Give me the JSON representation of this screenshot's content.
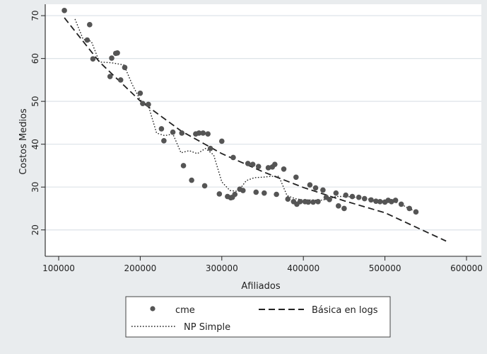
{
  "colors": {
    "outer_background": "#e9ecee",
    "plot_background": "#ffffff",
    "grid": "#dde3e8",
    "axis": "#222222",
    "markers": "#555555"
  },
  "chart_data": {
    "type": "scatter",
    "title": "",
    "xlabel": "Afiliados",
    "ylabel": "Costos Medios",
    "xlim": [
      100000,
      600000
    ],
    "ylim": [
      15,
      72
    ],
    "x_ticks": [
      100000,
      200000,
      300000,
      400000,
      500000,
      600000
    ],
    "x_tick_labels": [
      "100000",
      "200000",
      "300000",
      "400000",
      "500000",
      "600000"
    ],
    "y_ticks": [
      20,
      30,
      40,
      50,
      60,
      70
    ],
    "y_tick_labels": [
      "20",
      "30",
      "40",
      "50",
      "60",
      "70"
    ],
    "grid": "horizontal",
    "legend_position": "bottom",
    "series": [
      {
        "name": "cme",
        "style": "markers",
        "points": [
          [
            107000,
            71.2
          ],
          [
            135000,
            64.3
          ],
          [
            138000,
            67.9
          ],
          [
            142000,
            59.9
          ],
          [
            163000,
            55.8
          ],
          [
            165000,
            60.1
          ],
          [
            170000,
            61.2
          ],
          [
            172000,
            61.3
          ],
          [
            176000,
            55.0
          ],
          [
            181000,
            57.9
          ],
          [
            200000,
            51.9
          ],
          [
            203000,
            49.5
          ],
          [
            210000,
            49.3
          ],
          [
            226000,
            43.6
          ],
          [
            229000,
            40.8
          ],
          [
            240000,
            42.8
          ],
          [
            251000,
            42.6
          ],
          [
            253000,
            35.0
          ],
          [
            263000,
            31.6
          ],
          [
            268000,
            42.4
          ],
          [
            272000,
            42.6
          ],
          [
            277000,
            42.6
          ],
          [
            279000,
            30.3
          ],
          [
            283000,
            42.4
          ],
          [
            286000,
            39.0
          ],
          [
            297000,
            28.4
          ],
          [
            300000,
            40.7
          ],
          [
            307000,
            27.8
          ],
          [
            311000,
            27.5
          ],
          [
            313000,
            27.6
          ],
          [
            316000,
            28.3
          ],
          [
            314000,
            36.9
          ],
          [
            322000,
            29.5
          ],
          [
            326000,
            29.2
          ],
          [
            332000,
            35.5
          ],
          [
            338000,
            35.3
          ],
          [
            342000,
            28.8
          ],
          [
            345000,
            34.8
          ],
          [
            352000,
            28.6
          ],
          [
            357000,
            34.5
          ],
          [
            362000,
            34.7
          ],
          [
            365000,
            35.3
          ],
          [
            367000,
            28.3
          ],
          [
            376000,
            34.2
          ],
          [
            381000,
            27.2
          ],
          [
            388000,
            26.6
          ],
          [
            391000,
            32.3
          ],
          [
            392000,
            26.0
          ],
          [
            396000,
            26.6
          ],
          [
            402000,
            26.6
          ],
          [
            406000,
            26.5
          ],
          [
            408000,
            30.5
          ],
          [
            412000,
            26.5
          ],
          [
            415000,
            29.8
          ],
          [
            418000,
            26.6
          ],
          [
            424000,
            29.3
          ],
          [
            428000,
            27.6
          ],
          [
            432000,
            27.1
          ],
          [
            440000,
            28.6
          ],
          [
            443000,
            25.6
          ],
          [
            450000,
            25.0
          ],
          [
            452000,
            28.1
          ],
          [
            460000,
            27.8
          ],
          [
            468000,
            27.6
          ],
          [
            475000,
            27.3
          ],
          [
            483000,
            27.0
          ],
          [
            489000,
            26.7
          ],
          [
            494000,
            26.6
          ],
          [
            500000,
            26.5
          ],
          [
            504000,
            26.9
          ],
          [
            508000,
            26.6
          ],
          [
            513000,
            26.9
          ],
          [
            520000,
            26.0
          ],
          [
            530000,
            25.0
          ],
          [
            538000,
            24.2
          ]
        ]
      },
      {
        "name": "Básica en logs",
        "style": "dashed",
        "points": [
          [
            107000,
            69.5
          ],
          [
            150000,
            59.2
          ],
          [
            200000,
            50.1
          ],
          [
            250000,
            43.1
          ],
          [
            300000,
            37.8
          ],
          [
            350000,
            33.6
          ],
          [
            400000,
            29.9
          ],
          [
            450000,
            26.8
          ],
          [
            500000,
            24.0
          ],
          [
            550000,
            19.6
          ],
          [
            575000,
            17.4
          ]
        ]
      },
      {
        "name": "NP Simple",
        "style": "dotted",
        "points": [
          [
            120000,
            69.2
          ],
          [
            130000,
            64.5
          ],
          [
            140000,
            64.0
          ],
          [
            150000,
            59.2
          ],
          [
            165000,
            59.0
          ],
          [
            180000,
            58.5
          ],
          [
            190000,
            54.0
          ],
          [
            200000,
            50.3
          ],
          [
            210000,
            49.0
          ],
          [
            220000,
            42.6
          ],
          [
            230000,
            42.0
          ],
          [
            240000,
            42.4
          ],
          [
            250000,
            38.0
          ],
          [
            260000,
            38.5
          ],
          [
            270000,
            37.8
          ],
          [
            280000,
            39.0
          ],
          [
            290000,
            37.5
          ],
          [
            300000,
            31.2
          ],
          [
            310000,
            29.2
          ],
          [
            320000,
            29.0
          ],
          [
            330000,
            31.5
          ],
          [
            340000,
            32.2
          ],
          [
            350000,
            32.3
          ],
          [
            360000,
            32.5
          ],
          [
            370000,
            32.5
          ],
          [
            380000,
            28.0
          ],
          [
            390000,
            27.3
          ],
          [
            400000,
            27.0
          ],
          [
            410000,
            27.0
          ],
          [
            420000,
            26.9
          ],
          [
            430000,
            27.2
          ],
          [
            440000,
            27.8
          ],
          [
            450000,
            27.8
          ],
          [
            460000,
            27.7
          ],
          [
            470000,
            27.4
          ],
          [
            480000,
            27.2
          ],
          [
            490000,
            26.9
          ],
          [
            500000,
            26.7
          ],
          [
            510000,
            26.7
          ],
          [
            520000,
            26.0
          ],
          [
            530000,
            24.9
          ],
          [
            540000,
            24.2
          ]
        ]
      }
    ],
    "legend": [
      "cme",
      "Básica en logs",
      "NP Simple"
    ]
  }
}
